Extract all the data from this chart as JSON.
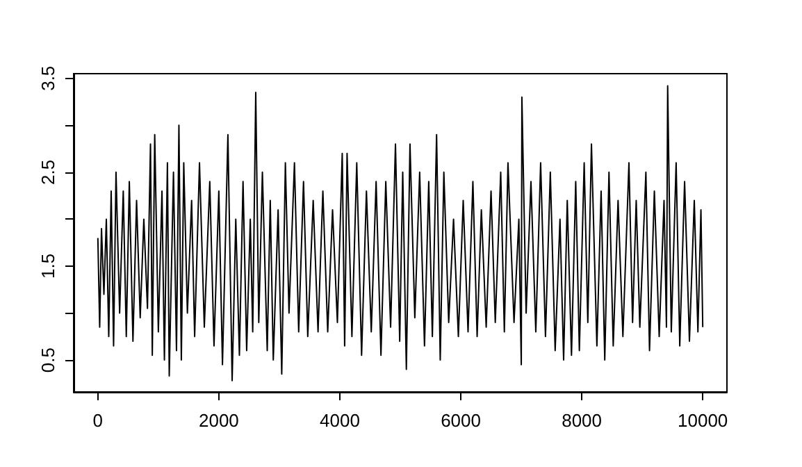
{
  "chart_data": {
    "type": "line",
    "x": [
      0,
      30,
      60,
      100,
      140,
      180,
      220,
      260,
      300,
      360,
      420,
      470,
      520,
      580,
      640,
      700,
      760,
      820,
      870,
      900,
      940,
      1000,
      1060,
      1100,
      1150,
      1180,
      1250,
      1300,
      1340,
      1380,
      1420,
      1480,
      1550,
      1600,
      1680,
      1760,
      1850,
      1920,
      2000,
      2060,
      2150,
      2220,
      2280,
      2340,
      2400,
      2460,
      2520,
      2560,
      2610,
      2660,
      2720,
      2800,
      2850,
      2900,
      2980,
      3040,
      3100,
      3160,
      3250,
      3320,
      3400,
      3470,
      3560,
      3640,
      3720,
      3800,
      3880,
      3960,
      4040,
      4080,
      4120,
      4200,
      4280,
      4360,
      4440,
      4520,
      4600,
      4680,
      4760,
      4840,
      4920,
      4990,
      5040,
      5100,
      5160,
      5240,
      5320,
      5400,
      5470,
      5530,
      5600,
      5660,
      5720,
      5800,
      5880,
      5960,
      6040,
      6120,
      6200,
      6270,
      6340,
      6420,
      6500,
      6570,
      6660,
      6720,
      6780,
      6880,
      6960,
      7000,
      7010,
      7080,
      7160,
      7240,
      7320,
      7400,
      7480,
      7560,
      7640,
      7700,
      7760,
      7830,
      7900,
      7960,
      8040,
      8100,
      8160,
      8250,
      8320,
      8380,
      8450,
      8520,
      8600,
      8680,
      8780,
      8840,
      8900,
      8960,
      9060,
      9120,
      9200,
      9280,
      9360,
      9400,
      9420,
      9480,
      9560,
      9620,
      9700,
      9780,
      9860,
      9920,
      9970,
      10000
    ],
    "series": [
      {
        "color": "#000000",
        "values": [
          1.8,
          0.85,
          1.9,
          1.2,
          2.0,
          0.75,
          2.3,
          0.65,
          2.5,
          1.0,
          2.3,
          0.75,
          2.4,
          0.7,
          2.2,
          0.95,
          2.0,
          1.05,
          2.8,
          0.55,
          2.9,
          0.8,
          2.3,
          0.5,
          2.6,
          0.33,
          2.5,
          0.6,
          3.0,
          0.5,
          2.6,
          1.0,
          2.2,
          0.75,
          2.6,
          0.85,
          2.4,
          0.65,
          2.3,
          0.45,
          2.9,
          0.28,
          2.0,
          0.55,
          2.4,
          0.6,
          2.0,
          0.8,
          3.35,
          0.9,
          2.5,
          0.6,
          2.2,
          0.5,
          2.1,
          0.35,
          2.6,
          1.0,
          2.6,
          0.8,
          2.4,
          0.75,
          2.2,
          0.8,
          2.3,
          0.8,
          2.1,
          0.9,
          2.7,
          0.65,
          2.7,
          0.75,
          2.6,
          0.55,
          2.3,
          0.8,
          2.4,
          0.55,
          2.4,
          0.85,
          2.8,
          0.7,
          2.5,
          0.4,
          2.8,
          0.95,
          2.5,
          0.65,
          2.4,
          0.75,
          2.9,
          0.5,
          2.5,
          0.9,
          2.0,
          0.75,
          2.2,
          0.8,
          2.4,
          0.75,
          2.1,
          0.85,
          2.3,
          0.9,
          2.5,
          0.8,
          2.6,
          0.9,
          2.0,
          0.45,
          3.3,
          1.0,
          2.4,
          0.8,
          2.6,
          0.75,
          2.5,
          0.6,
          2.0,
          0.5,
          2.2,
          0.55,
          2.4,
          0.6,
          2.6,
          0.9,
          2.8,
          0.65,
          2.3,
          0.5,
          2.5,
          0.65,
          2.2,
          0.75,
          2.6,
          0.9,
          2.2,
          0.85,
          2.5,
          0.6,
          2.3,
          0.75,
          2.2,
          0.85,
          3.42,
          0.8,
          2.6,
          0.65,
          2.4,
          0.7,
          2.2,
          0.8,
          2.1,
          0.85
        ]
      }
    ],
    "xlim": [
      -400,
      10400
    ],
    "xticks": [
      0,
      2000,
      4000,
      6000,
      8000,
      10000
    ],
    "ylim": [
      0.16,
      3.55
    ],
    "yticks": [
      0.5,
      {
        "value": 1,
        "label": null
      },
      1.5,
      {
        "value": 2,
        "label": null
      },
      2.5,
      {
        "value": 3,
        "label": null
      },
      3.5
    ],
    "grid": false,
    "marker": "none",
    "line_style": "solid"
  }
}
